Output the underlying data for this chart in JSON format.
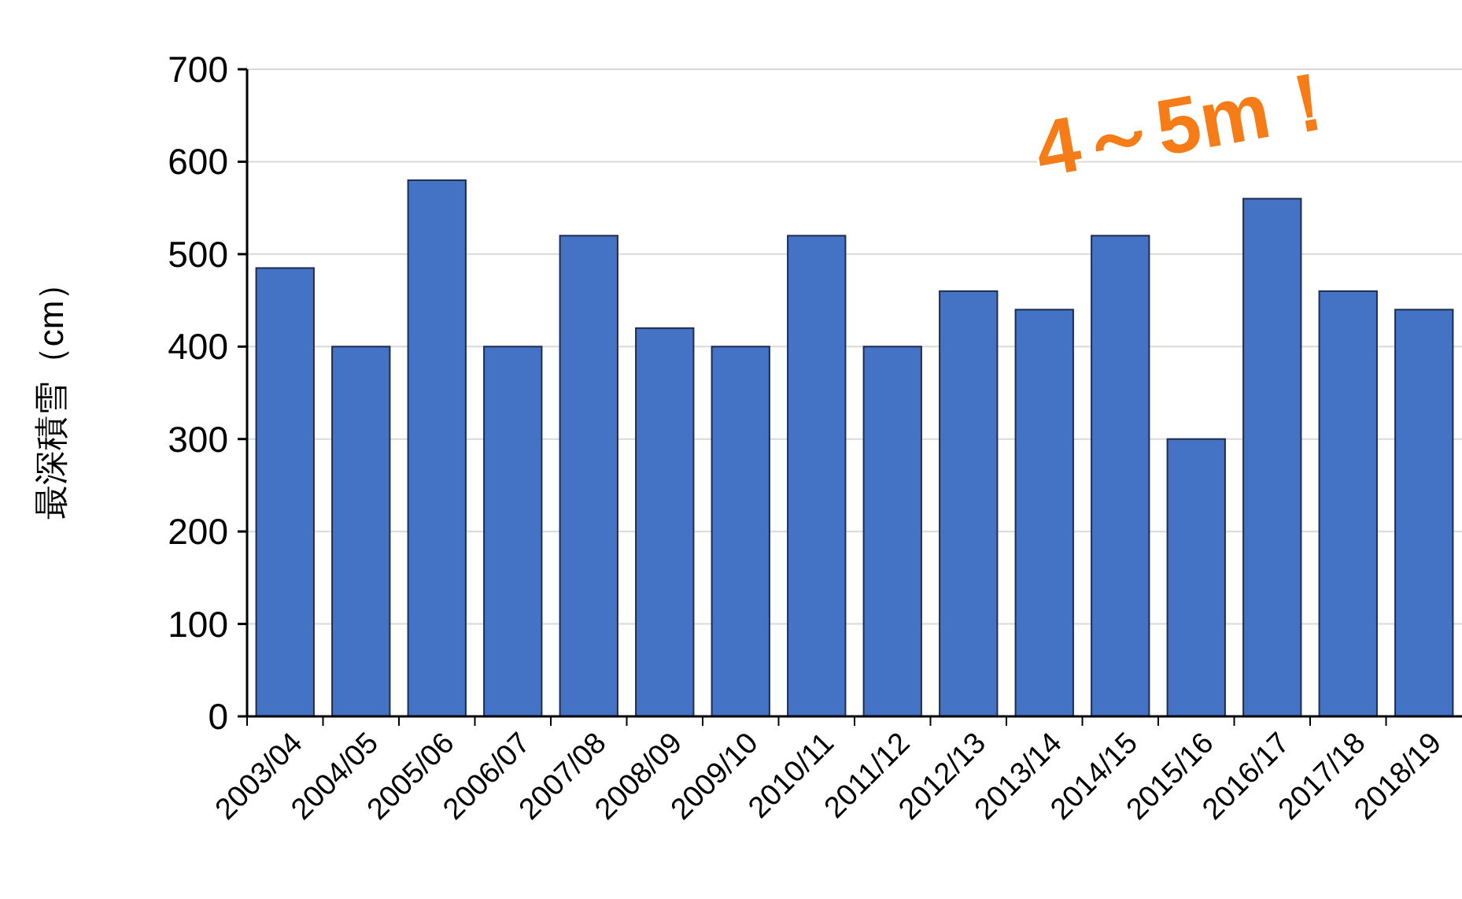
{
  "chart_data": {
    "type": "bar",
    "categories": [
      "2003/04",
      "2004/05",
      "2005/06",
      "2006/07",
      "2007/08",
      "2008/09",
      "2009/10",
      "2010/11",
      "2011/12",
      "2012/13",
      "2013/14",
      "2014/15",
      "2015/16",
      "2016/17",
      "2017/18",
      "2018/19"
    ],
    "values": [
      485,
      400,
      580,
      400,
      520,
      420,
      400,
      520,
      400,
      460,
      440,
      520,
      300,
      560,
      460,
      440
    ],
    "color": "#4472c4",
    "ylabel": "最深積雪（cm）",
    "ylim": [
      0,
      700
    ],
    "yticks": [
      0,
      100,
      200,
      300,
      400,
      500,
      600,
      700
    ],
    "grid": "y",
    "annotations": [
      "4～5m！"
    ]
  }
}
